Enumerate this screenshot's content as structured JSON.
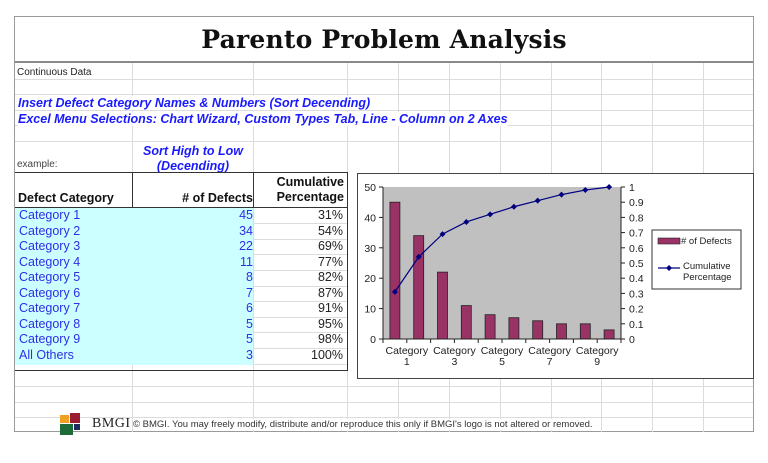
{
  "title": "Parento Problem Analysis",
  "labels": {
    "continuous_data": "Continuous Data",
    "instruction_1": "Insert Defect Category Names & Numbers (Sort Decending)",
    "instruction_2": "Excel Menu Selections: Chart Wizard, Custom Types Tab, Line - Column on 2 Axes",
    "example": "example:",
    "sort_note_line1": "Sort High to Low",
    "sort_note_line2": "(Decending)"
  },
  "table": {
    "headers": {
      "category": "Defect Category",
      "defects": "# of Defects",
      "cumulative_line1": "Cumulative",
      "cumulative_line2": "Percentage"
    },
    "rows": [
      {
        "category": "Category 1",
        "defects": "45",
        "cumulative": "31%"
      },
      {
        "category": "Category 2",
        "defects": "34",
        "cumulative": "54%"
      },
      {
        "category": "Category 3",
        "defects": "22",
        "cumulative": "69%"
      },
      {
        "category": "Category 4",
        "defects": "11",
        "cumulative": "77%"
      },
      {
        "category": "Category 5",
        "defects": "8",
        "cumulative": "82%"
      },
      {
        "category": "Category 6",
        "defects": "7",
        "cumulative": "87%"
      },
      {
        "category": "Category 7",
        "defects": "6",
        "cumulative": "91%"
      },
      {
        "category": "Category 8",
        "defects": "5",
        "cumulative": "95%"
      },
      {
        "category": "Category 9",
        "defects": "5",
        "cumulative": "98%"
      },
      {
        "category": "All Others",
        "defects": "3",
        "cumulative": "100%"
      }
    ]
  },
  "footer": {
    "logo_text": "BMGI",
    "copyright": "© BMGI. You may freely modify, distribute and/or reproduce this only if BMGI's logo is not altered or removed.",
    "logo_colors": {
      "orange": "#f0a020",
      "red": "#9b1b30",
      "green": "#1e6b3a",
      "navy": "#1f2d5c"
    }
  },
  "colors": {
    "bar": "#993366",
    "line": "#000080",
    "plot_bg": "#c0c0c0",
    "instruction_text": "#1a1aff",
    "category_text": "#2e2ee6",
    "table_highlight": "#ccffff"
  },
  "chart_data": {
    "type": "bar",
    "title": "",
    "categories": [
      "Category 1",
      "Category 2",
      "Category 3",
      "Category 4",
      "Category 5",
      "Category 6",
      "Category 7",
      "Category 8",
      "Category 9",
      "All Others"
    ],
    "x_tick_labels": [
      [
        "Category",
        "1"
      ],
      [
        "Category",
        "3"
      ],
      [
        "Category",
        "5"
      ],
      [
        "Category",
        "7"
      ],
      [
        "Category",
        "9"
      ]
    ],
    "series": [
      {
        "name": "# of Defects",
        "type": "bar",
        "axis": "left",
        "values": [
          45,
          34,
          22,
          11,
          8,
          7,
          6,
          5,
          5,
          3
        ]
      },
      {
        "name": "Cumulative Percentage",
        "type": "line",
        "axis": "right",
        "values": [
          0.31,
          0.54,
          0.69,
          0.77,
          0.82,
          0.87,
          0.91,
          0.95,
          0.98,
          1.0
        ]
      }
    ],
    "y_left": {
      "min": 0,
      "max": 50,
      "ticks": [
        0,
        10,
        20,
        30,
        40,
        50
      ]
    },
    "y_right": {
      "min": 0,
      "max": 1,
      "ticks": [
        0,
        0.1,
        0.2,
        0.3,
        0.4,
        0.5,
        0.6,
        0.7,
        0.8,
        0.9,
        1
      ]
    },
    "legend": {
      "position": "right",
      "entries": [
        "# of Defects",
        "Cumulative Percentage"
      ]
    },
    "grid": false
  }
}
